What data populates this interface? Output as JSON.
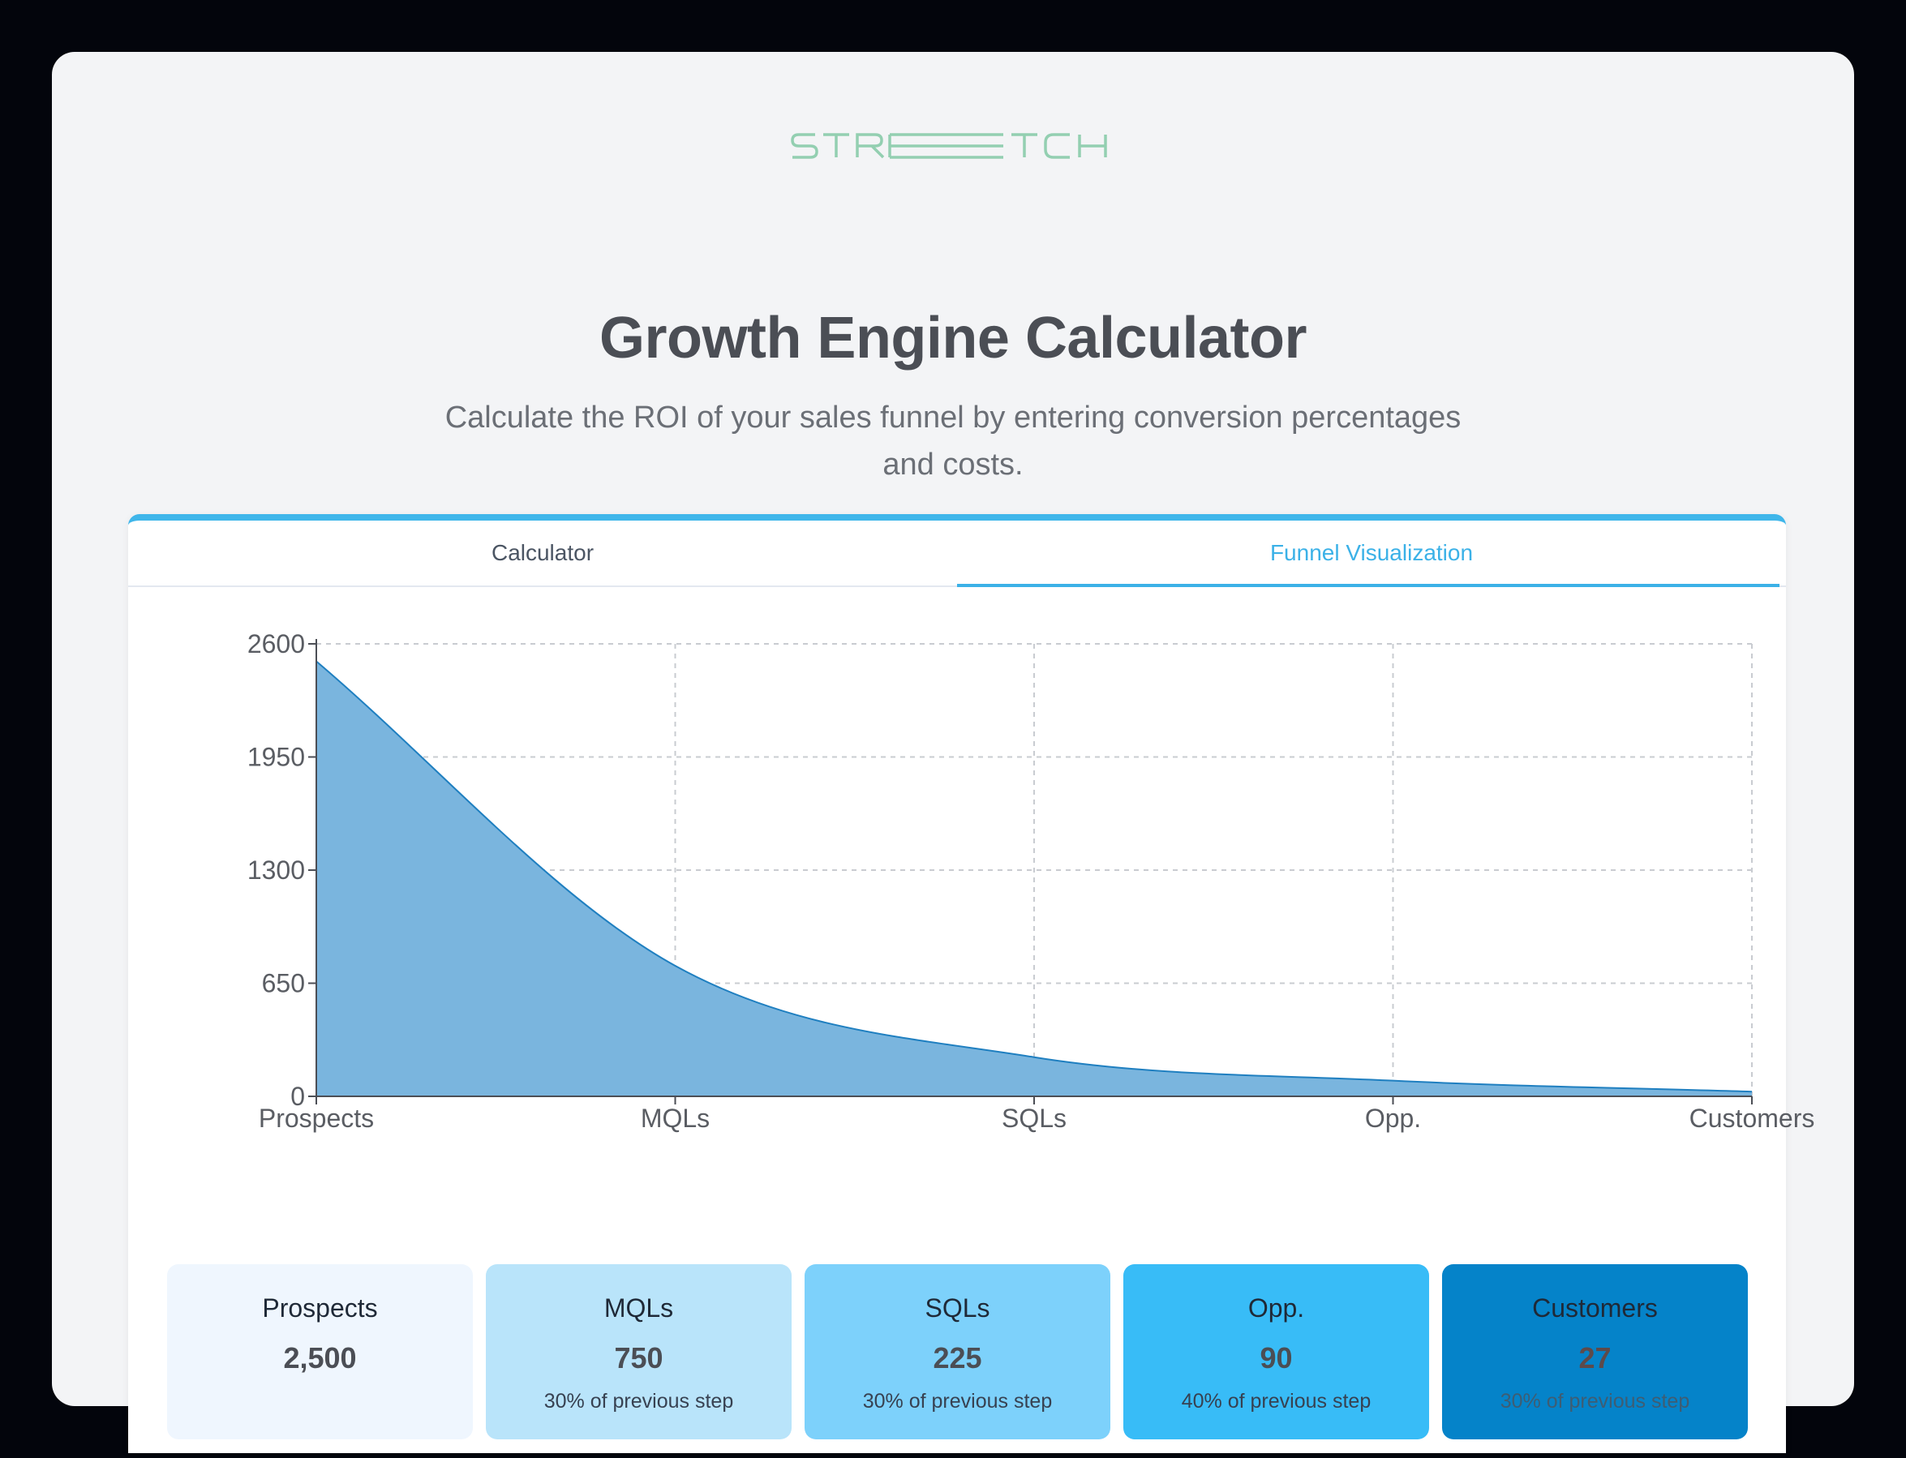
{
  "logo": {
    "text": "STRETCH",
    "color": "#93cfb1"
  },
  "header": {
    "title": "Growth Engine Calculator",
    "subtitle": "Calculate the ROI of your sales funnel by entering conversion percentages and costs."
  },
  "tabs": [
    {
      "label": "Calculator",
      "active": false
    },
    {
      "label": "Funnel Visualization",
      "active": true
    }
  ],
  "chart_data": {
    "type": "area",
    "categories": [
      "Prospects",
      "MQLs",
      "SQLs",
      "Opp.",
      "Customers"
    ],
    "series": [
      {
        "values": [
          2500,
          750,
          225,
          90,
          27
        ]
      }
    ],
    "ylim": [
      0,
      2600
    ],
    "yticks": [
      0,
      650,
      1300,
      1950,
      2600
    ],
    "grid": true,
    "fill_color": "#7ab5de",
    "line_color": "#1f7fc0"
  },
  "stages": [
    {
      "name": "Prospects",
      "value": "2,500",
      "note": ""
    },
    {
      "name": "MQLs",
      "value": "750",
      "note": "30% of previous step"
    },
    {
      "name": "SQLs",
      "value": "225",
      "note": "30% of previous step"
    },
    {
      "name": "Opp.",
      "value": "90",
      "note": "40% of previous step"
    },
    {
      "name": "Customers",
      "value": "27",
      "note": "30% of previous step"
    }
  ]
}
